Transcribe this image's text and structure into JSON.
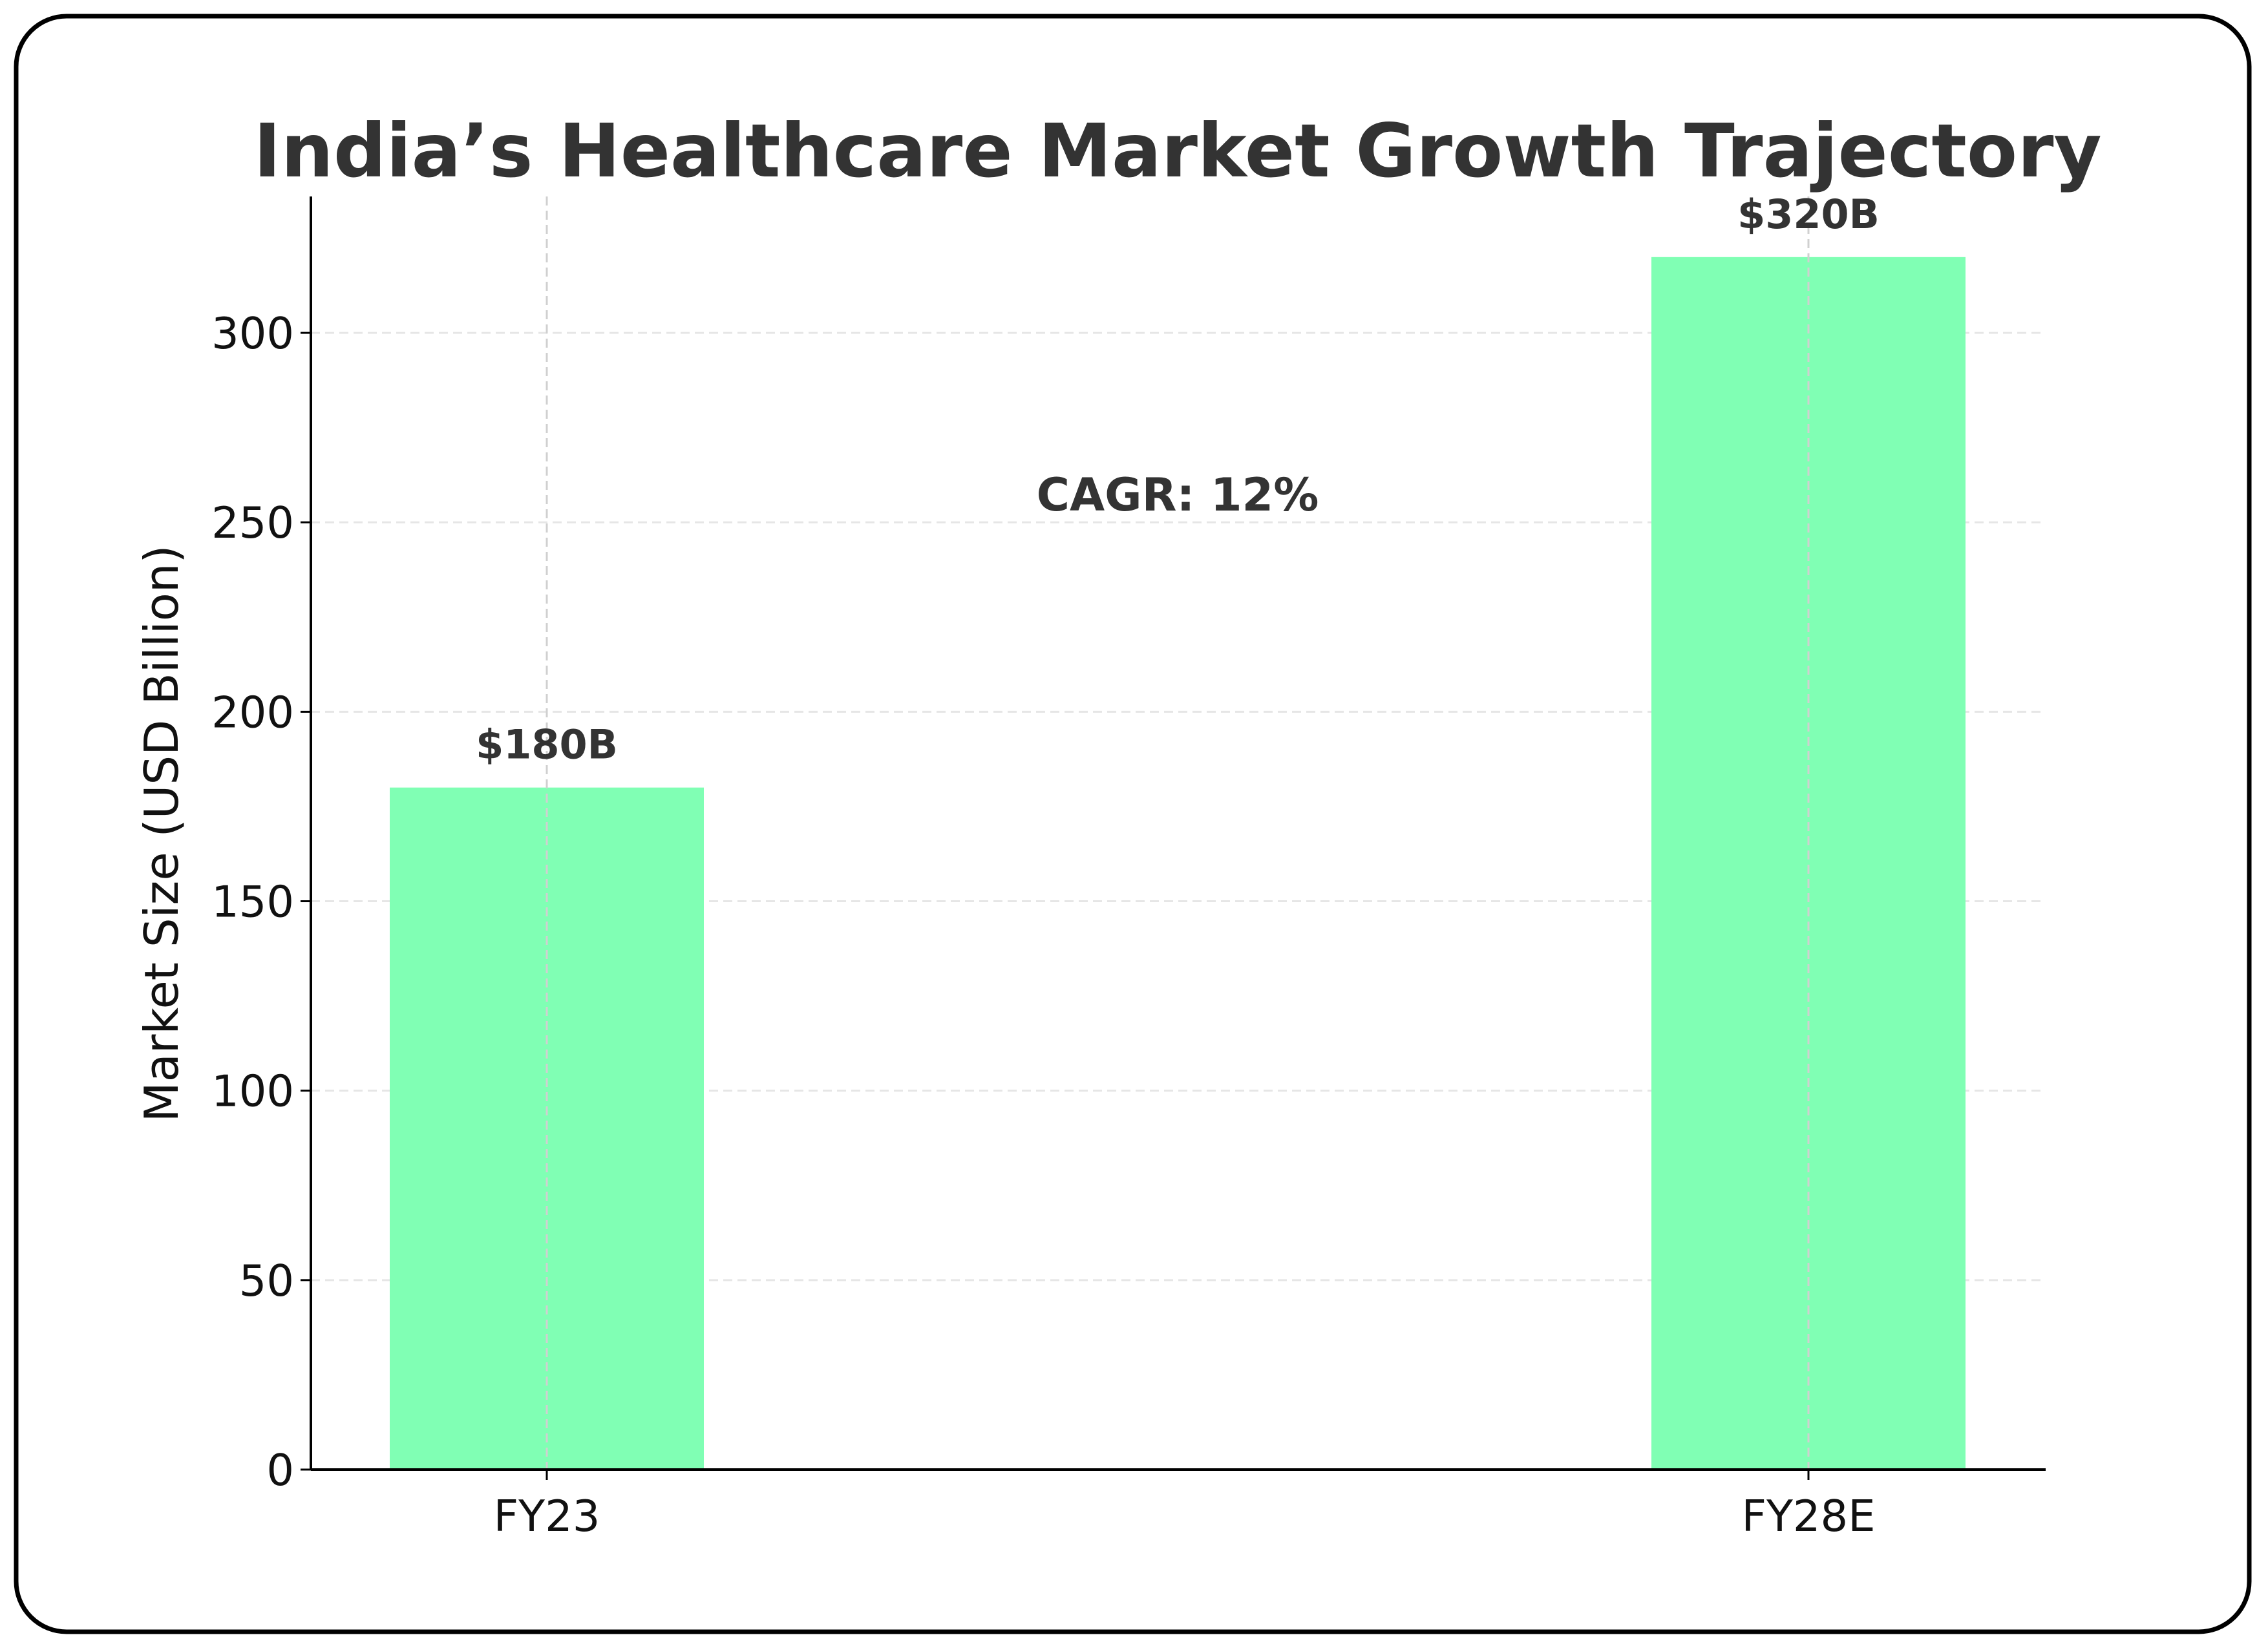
{
  "chart_data": {
    "type": "bar",
    "title": "India’s Healthcare Market Growth Trajectory",
    "xlabel": "",
    "ylabel": "Market Size (USD Billion)",
    "categories": [
      "FY23",
      "FY28E"
    ],
    "values": [
      180,
      320
    ],
    "data_labels": [
      "$180B",
      "$320B"
    ],
    "annotation": "CAGR: 12%",
    "ylim": [
      0,
      336
    ],
    "yticks": [
      0,
      50,
      100,
      150,
      200,
      250,
      300
    ],
    "grid": true,
    "bar_color": "#80ffb4",
    "text_color": "#333333"
  }
}
